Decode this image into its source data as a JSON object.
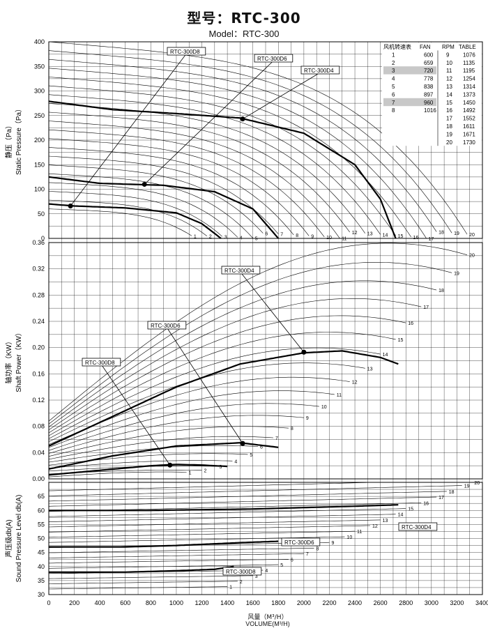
{
  "header": {
    "title_cn": "型号：RTC-300",
    "title_en": "Model：RTC-300"
  },
  "chart_data": {
    "type": "line",
    "x": {
      "label_cn": "风量（M³/H）",
      "label_en": "VOLUME(M³/H)",
      "range": [
        0,
        3400
      ],
      "ticks": [
        0,
        200,
        400,
        600,
        800,
        1000,
        1200,
        1400,
        1600,
        1800,
        2000,
        2200,
        2400,
        2600,
        2800,
        3000,
        3200,
        3400
      ]
    },
    "panels": [
      {
        "id": "static-pressure",
        "ylabel_cn": "静压（Pa）",
        "ylabel_en": "Static Pressure（Pa）",
        "ylim": [
          0,
          400
        ],
        "yticks": [
          0,
          50,
          100,
          150,
          200,
          250,
          300,
          350,
          400
        ],
        "curve_count": 20,
        "curve_labels": [
          "1",
          "2",
          "3",
          "4",
          "5",
          "6",
          "7",
          "8",
          "9",
          "10",
          "11",
          "12",
          "13",
          "14",
          "15",
          "16",
          "17",
          "18",
          "19",
          "20"
        ],
        "series": [
          {
            "name": "RTC-300D8",
            "x": [
              0,
              200,
              600,
              1000,
              1200,
              1350
            ],
            "y": [
              70,
              66,
              62,
              52,
              30,
              0
            ]
          },
          {
            "name": "RTC-300D6",
            "x": [
              0,
              400,
              900,
              1300,
              1600,
              1800
            ],
            "y": [
              125,
              112,
              108,
              95,
              60,
              0
            ]
          },
          {
            "name": "RTC-300D4",
            "x": [
              0,
              500,
              1000,
              1500,
              2000,
              2400,
              2600,
              2720
            ],
            "y": [
              279,
              262,
              254,
              245,
              214,
              150,
              80,
              0
            ]
          }
        ],
        "operating_points": [
          {
            "series": "RTC-300D8",
            "x": 170,
            "y": 66
          },
          {
            "series": "RTC-300D6",
            "x": 750,
            "y": 110
          },
          {
            "series": "RTC-300D4",
            "x": 1520,
            "y": 243
          }
        ]
      },
      {
        "id": "shaft-power",
        "ylabel_cn": "轴功率（KW）",
        "ylabel_en": "Shaft Power（KW）",
        "ylim": [
          0,
          0.36
        ],
        "yticks": [
          0.0,
          0.04,
          0.08,
          0.12,
          0.16,
          0.2,
          0.24,
          0.28,
          0.32,
          0.36
        ],
        "curve_labels": [
          "1",
          "2",
          "3",
          "4",
          "5",
          "6",
          "7",
          "8",
          "9",
          "10",
          "11",
          "12",
          "13",
          "14",
          "15",
          "16",
          "17",
          "18",
          "19",
          "20"
        ],
        "series": [
          {
            "name": "RTC-300D8",
            "x": [
              0,
              400,
              800,
              1000,
              1200,
              1400
            ],
            "y": [
              0.006,
              0.013,
              0.02,
              0.022,
              0.021,
              0.019
            ]
          },
          {
            "name": "RTC-300D6",
            "x": [
              0,
              500,
              1000,
              1500,
              1800
            ],
            "y": [
              0.015,
              0.035,
              0.05,
              0.055,
              0.048
            ]
          },
          {
            "name": "RTC-300D4",
            "x": [
              0,
              500,
              1000,
              1500,
              2000,
              2300,
              2600,
              2740
            ],
            "y": [
              0.05,
              0.095,
              0.14,
              0.175,
              0.192,
              0.195,
              0.185,
              0.175
            ]
          }
        ],
        "operating_points": [
          {
            "series": "RTC-300D8",
            "x": 950,
            "y": 0.021
          },
          {
            "series": "RTC-300D6",
            "x": 1520,
            "y": 0.054
          },
          {
            "series": "RTC-300D4",
            "x": 2000,
            "y": 0.193
          }
        ]
      },
      {
        "id": "sound",
        "ylabel_cn": "声压级db(A)",
        "ylabel_en": "Sound Pressure Level db(A)",
        "ylim": [
          30,
          70
        ],
        "yticks": [
          30,
          35,
          40,
          45,
          50,
          55,
          60,
          65
        ],
        "curve_labels": [
          "1",
          "2",
          "3",
          "4",
          "5",
          "6",
          "7",
          "8",
          "9",
          "10",
          "11",
          "12",
          "13",
          "14",
          "15",
          "16",
          "17",
          "18",
          "19",
          "20"
        ],
        "series": [
          {
            "name": "RTC-300D8",
            "x": [
              0,
              600,
              1000,
              1300,
              1450
            ],
            "y": [
              38,
              38,
              38.5,
              39,
              40
            ]
          },
          {
            "name": "RTC-300D6",
            "x": [
              0,
              600,
              1000,
              1500,
              1800
            ],
            "y": [
              47,
              47,
              47.5,
              48.5,
              49
            ]
          },
          {
            "name": "RTC-300D4",
            "x": [
              0,
              800,
              1600,
              2400,
              2740
            ],
            "y": [
              60,
              60,
              60.5,
              61.5,
              62
            ]
          }
        ]
      }
    ],
    "table": {
      "header": [
        "风机转速表",
        "FAN",
        "RPM",
        "TABLE"
      ],
      "rows": [
        [
          "1",
          "600",
          "9",
          "1076"
        ],
        [
          "2",
          "659",
          "10",
          "1135"
        ],
        [
          "3",
          "720",
          "11",
          "1195"
        ],
        [
          "4",
          "778",
          "12",
          "1254"
        ],
        [
          "5",
          "838",
          "13",
          "1314"
        ],
        [
          "6",
          "897",
          "14",
          "1373"
        ],
        [
          "7",
          "960",
          "15",
          "1450"
        ],
        [
          "8",
          "1016",
          "16",
          "1492"
        ],
        [
          "",
          "",
          "17",
          "1552"
        ],
        [
          "",
          "",
          "18",
          "1611"
        ],
        [
          "",
          "",
          "19",
          "1671"
        ],
        [
          "",
          "",
          "20",
          "1730"
        ]
      ],
      "highlighted_rows": [
        2,
        6
      ]
    },
    "colors": {
      "line": "#000000",
      "grid": "#000000",
      "highlight": "#c8c8c8"
    }
  }
}
